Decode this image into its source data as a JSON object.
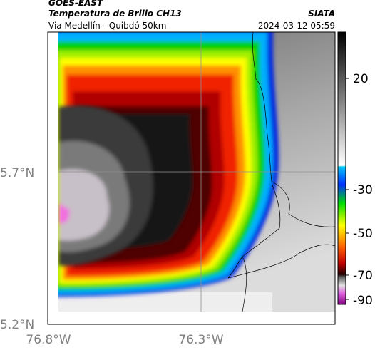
{
  "header": {
    "satellite": "GOES-EAST",
    "product": "Temperatura de Brillo CH13",
    "region": "Via Medellín - Quibdó 50km",
    "source": "SIATA",
    "timestamp": "2024-03-12 05:59"
  },
  "map": {
    "lat_labels": [
      "5.7°N",
      "5.2°N"
    ],
    "lon_labels": [
      "76.8°W",
      "76.3°W"
    ]
  },
  "colorbar": {
    "tick_labels": [
      20,
      -30,
      -50,
      -70,
      -90
    ]
  }
}
